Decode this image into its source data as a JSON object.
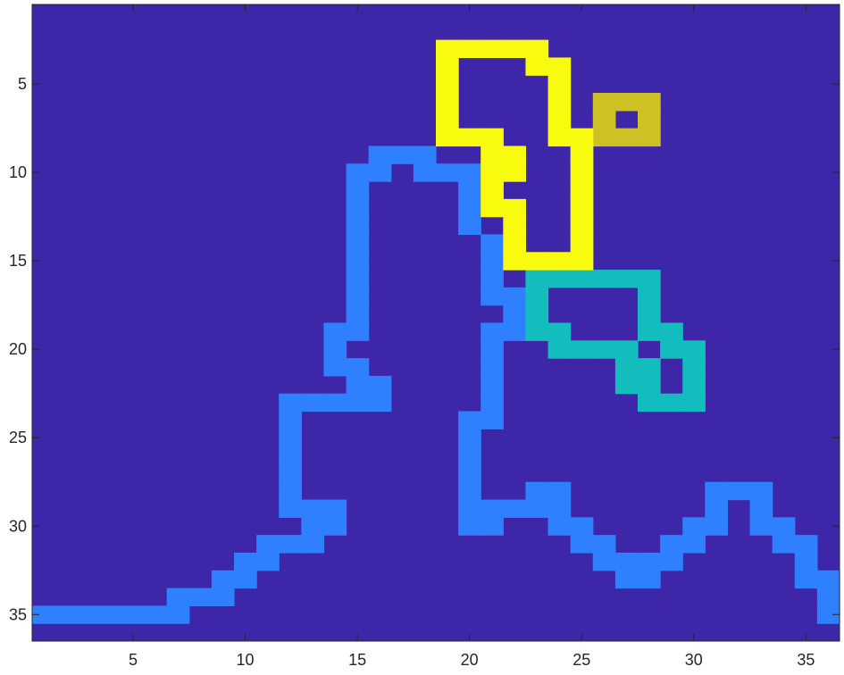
{
  "chart_data": {
    "type": "heatmap",
    "title": "",
    "xlabel": "",
    "ylabel": "",
    "xlim": [
      0.5,
      36.5
    ],
    "ylim": [
      0.5,
      36.5
    ],
    "y_reversed": true,
    "grid": false,
    "legend": "none",
    "x_ticks": [
      5,
      10,
      15,
      20,
      25,
      30,
      35
    ],
    "y_ticks": [
      5,
      10,
      15,
      20,
      25,
      30,
      35
    ],
    "x_tick_labels": [
      "5",
      "10",
      "15",
      "20",
      "25",
      "30",
      "35"
    ],
    "y_tick_labels": [
      "5",
      "10",
      "15",
      "20",
      "25",
      "30",
      "35"
    ],
    "background_value": 0,
    "colors": {
      "background": "#3D26A8",
      "1": "#2F80FF",
      "2": "#14BDBD",
      "3": "#CDC126",
      "4": "#F9FB0E"
    },
    "regions": [
      {
        "value": 1,
        "cells": [
          [
            16,
            9
          ],
          [
            17,
            9
          ],
          [
            18,
            9
          ],
          [
            15,
            10
          ],
          [
            16,
            10
          ],
          [
            18,
            10
          ],
          [
            19,
            10
          ],
          [
            20,
            10
          ],
          [
            15,
            11
          ],
          [
            20,
            11
          ],
          [
            15,
            12
          ],
          [
            20,
            12
          ],
          [
            15,
            13
          ],
          [
            20,
            13
          ],
          [
            15,
            14
          ],
          [
            21,
            14
          ],
          [
            15,
            15
          ],
          [
            21,
            15
          ],
          [
            15,
            16
          ],
          [
            21,
            16
          ],
          [
            15,
            17
          ],
          [
            21,
            17
          ],
          [
            22,
            17
          ],
          [
            15,
            18
          ],
          [
            22,
            18
          ],
          [
            14,
            19
          ],
          [
            15,
            19
          ],
          [
            21,
            19
          ],
          [
            22,
            19
          ],
          [
            14,
            20
          ],
          [
            21,
            20
          ],
          [
            14,
            21
          ],
          [
            15,
            21
          ],
          [
            21,
            21
          ],
          [
            15,
            22
          ],
          [
            16,
            22
          ],
          [
            21,
            22
          ],
          [
            12,
            23
          ],
          [
            13,
            23
          ],
          [
            14,
            23
          ],
          [
            15,
            23
          ],
          [
            16,
            23
          ],
          [
            21,
            23
          ],
          [
            12,
            24
          ],
          [
            20,
            24
          ],
          [
            21,
            24
          ],
          [
            12,
            25
          ],
          [
            20,
            25
          ],
          [
            12,
            26
          ],
          [
            20,
            26
          ],
          [
            12,
            27
          ],
          [
            20,
            27
          ],
          [
            12,
            28
          ],
          [
            20,
            28
          ],
          [
            23,
            28
          ],
          [
            24,
            28
          ],
          [
            12,
            29
          ],
          [
            13,
            29
          ],
          [
            14,
            29
          ],
          [
            20,
            29
          ],
          [
            21,
            29
          ],
          [
            22,
            29
          ],
          [
            23,
            29
          ],
          [
            24,
            29
          ],
          [
            31,
            28
          ],
          [
            32,
            28
          ],
          [
            33,
            28
          ],
          [
            13,
            30
          ],
          [
            14,
            30
          ],
          [
            20,
            30
          ],
          [
            21,
            30
          ],
          [
            24,
            30
          ],
          [
            25,
            30
          ],
          [
            31,
            29
          ],
          [
            30,
            30
          ],
          [
            31,
            30
          ],
          [
            33,
            29
          ],
          [
            33,
            30
          ],
          [
            34,
            30
          ],
          [
            11,
            31
          ],
          [
            12,
            31
          ],
          [
            13,
            31
          ],
          [
            25,
            31
          ],
          [
            26,
            31
          ],
          [
            29,
            31
          ],
          [
            30,
            31
          ],
          [
            34,
            31
          ],
          [
            35,
            31
          ],
          [
            10,
            32
          ],
          [
            11,
            32
          ],
          [
            26,
            32
          ],
          [
            27,
            32
          ],
          [
            28,
            32
          ],
          [
            29,
            32
          ],
          [
            35,
            32
          ],
          [
            9,
            33
          ],
          [
            10,
            33
          ],
          [
            27,
            33
          ],
          [
            28,
            33
          ],
          [
            35,
            33
          ],
          [
            36,
            33
          ],
          [
            7,
            34
          ],
          [
            8,
            34
          ],
          [
            9,
            34
          ],
          [
            36,
            34
          ],
          [
            1,
            35
          ],
          [
            2,
            35
          ],
          [
            3,
            35
          ],
          [
            4,
            35
          ],
          [
            5,
            35
          ],
          [
            6,
            35
          ],
          [
            7,
            35
          ],
          [
            36,
            35
          ]
        ]
      },
      {
        "value": 2,
        "cells": [
          [
            23,
            16
          ],
          [
            24,
            16
          ],
          [
            25,
            16
          ],
          [
            26,
            16
          ],
          [
            27,
            16
          ],
          [
            28,
            16
          ],
          [
            23,
            17
          ],
          [
            28,
            17
          ],
          [
            23,
            18
          ],
          [
            28,
            18
          ],
          [
            23,
            19
          ],
          [
            24,
            19
          ],
          [
            28,
            19
          ],
          [
            29,
            19
          ],
          [
            24,
            20
          ],
          [
            25,
            20
          ],
          [
            26,
            20
          ],
          [
            27,
            20
          ],
          [
            29,
            20
          ],
          [
            30,
            20
          ],
          [
            27,
            21
          ],
          [
            28,
            21
          ],
          [
            30,
            21
          ],
          [
            27,
            22
          ],
          [
            28,
            22
          ],
          [
            30,
            22
          ],
          [
            28,
            23
          ],
          [
            29,
            23
          ],
          [
            30,
            23
          ]
        ]
      },
      {
        "value": 3,
        "cells": [
          [
            26,
            6
          ],
          [
            27,
            6
          ],
          [
            28,
            6
          ],
          [
            26,
            7
          ],
          [
            28,
            7
          ],
          [
            26,
            8
          ],
          [
            27,
            8
          ],
          [
            28,
            8
          ]
        ]
      },
      {
        "value": 4,
        "cells": [
          [
            19,
            3
          ],
          [
            20,
            3
          ],
          [
            21,
            3
          ],
          [
            22,
            3
          ],
          [
            23,
            3
          ],
          [
            19,
            4
          ],
          [
            23,
            4
          ],
          [
            24,
            4
          ],
          [
            19,
            5
          ],
          [
            24,
            5
          ],
          [
            19,
            6
          ],
          [
            24,
            6
          ],
          [
            19,
            7
          ],
          [
            24,
            7
          ],
          [
            19,
            8
          ],
          [
            20,
            8
          ],
          [
            21,
            8
          ],
          [
            24,
            8
          ],
          [
            25,
            8
          ],
          [
            21,
            9
          ],
          [
            22,
            9
          ],
          [
            25,
            9
          ],
          [
            21,
            10
          ],
          [
            22,
            10
          ],
          [
            25,
            10
          ],
          [
            21,
            11
          ],
          [
            25,
            11
          ],
          [
            21,
            12
          ],
          [
            22,
            12
          ],
          [
            25,
            12
          ],
          [
            22,
            13
          ],
          [
            25,
            13
          ],
          [
            22,
            14
          ],
          [
            25,
            14
          ],
          [
            22,
            15
          ],
          [
            23,
            15
          ],
          [
            24,
            15
          ],
          [
            25,
            15
          ]
        ]
      }
    ]
  }
}
